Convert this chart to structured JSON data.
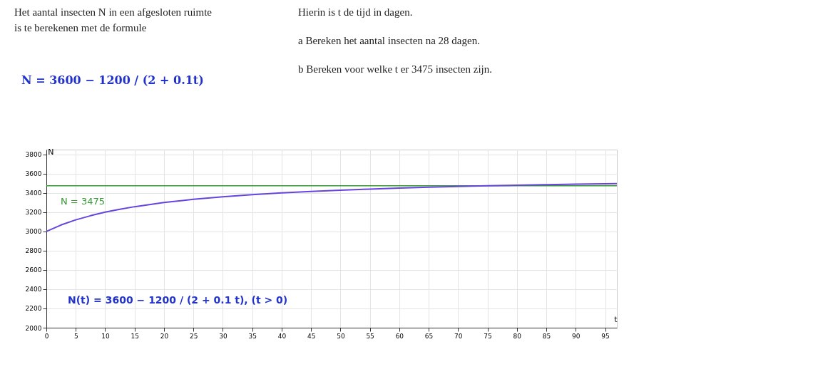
{
  "chart_data": {
    "type": "line",
    "xlabel": "t",
    "ylabel": "N",
    "x": [
      0,
      2.5,
      5,
      7.5,
      10,
      12.5,
      15,
      20,
      25,
      30,
      35,
      40,
      45,
      50,
      55,
      60,
      65,
      70,
      75,
      80,
      85,
      90,
      95,
      97
    ],
    "series": [
      {
        "color": "#6644dd",
        "values": [
          3000,
          3067,
          3120,
          3163,
          3200,
          3231,
          3257,
          3300,
          3333,
          3360,
          3382,
          3400,
          3415,
          3429,
          3440,
          3450,
          3459,
          3467,
          3474,
          3480,
          3486,
          3491,
          3495,
          3496
        ]
      }
    ],
    "xlim": [
      0,
      97
    ],
    "xticks": [
      0,
      5,
      10,
      15,
      20,
      25,
      30,
      35,
      40,
      45,
      50,
      55,
      60,
      65,
      70,
      75,
      80,
      85,
      90,
      95
    ],
    "ylim": [
      2000,
      3850
    ],
    "yticks": [
      2000,
      2200,
      2400,
      2600,
      2800,
      3000,
      3200,
      3400,
      3600,
      3800
    ],
    "grid": true,
    "ref_lines": [
      {
        "axis": "y",
        "value": 3475,
        "label": "N = 3475",
        "color": "#339933"
      }
    ],
    "annotations": [
      "Het aantal insecten N in een afgesloten ruimte\nis te berekenen met de formule",
      "N = 3600 − 1200 / (2 + 0.1t)",
      "Hierin is t de tijd in dagen.",
      "a      Bereken het aantal insecten na 28 dagen.",
      "b      Bereken voor welke t er 3475 insecten zijn.",
      "N(t) = 3600 − 1200 / (2 + 0.1 t),    (t > 0)"
    ]
  }
}
